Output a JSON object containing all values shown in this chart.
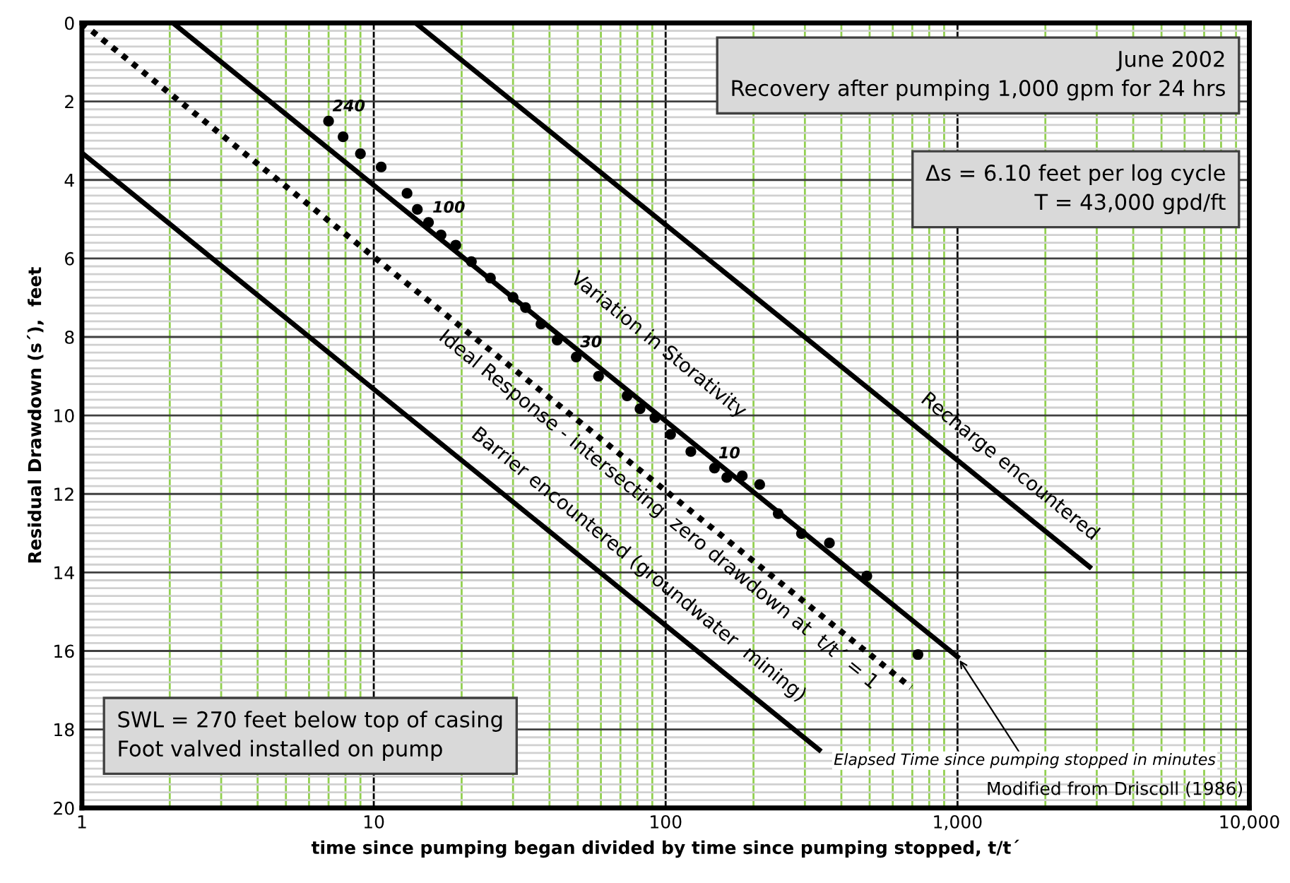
{
  "chart_data": {
    "type": "scatter",
    "xlabel": "time since pumping began divided by time since pumping stopped, t/t´",
    "ylabel": "Residual Drawdown (s´),  feet",
    "log": "x",
    "grid": true,
    "xlim": [
      1,
      10000
    ],
    "xticks": [
      1,
      {
        "value": 2,
        "label": null
      },
      {
        "value": 3,
        "label": null
      },
      {
        "value": 4,
        "label": null
      },
      {
        "value": 5,
        "label": null
      },
      {
        "value": 6,
        "label": null
      },
      {
        "value": 7,
        "label": null
      },
      {
        "value": 8,
        "label": null
      },
      {
        "value": 9,
        "label": null
      },
      10,
      {
        "value": 20,
        "label": null
      },
      {
        "value": 30,
        "label": null
      },
      {
        "value": 40,
        "label": null
      },
      {
        "value": 50,
        "label": null
      },
      {
        "value": 60,
        "label": null
      },
      {
        "value": 70,
        "label": null
      },
      {
        "value": 80,
        "label": null
      },
      {
        "value": 90,
        "label": null
      },
      100,
      {
        "value": 200,
        "label": null
      },
      {
        "value": 300,
        "label": null
      },
      {
        "value": 400,
        "label": null
      },
      {
        "value": 500,
        "label": null
      },
      {
        "value": 600,
        "label": null
      },
      {
        "value": 700,
        "label": null
      },
      {
        "value": 800,
        "label": null
      },
      {
        "value": 900,
        "label": null
      },
      {
        "value": 1000,
        "label": "1,000"
      },
      {
        "value": 2000,
        "label": null
      },
      {
        "value": 3000,
        "label": null
      },
      {
        "value": 4000,
        "label": null
      },
      {
        "value": 5000,
        "label": null
      },
      {
        "value": 6000,
        "label": null
      },
      {
        "value": 7000,
        "label": null
      },
      {
        "value": 8000,
        "label": null
      },
      {
        "value": 9000,
        "label": null
      },
      {
        "value": 10000,
        "label": "10,000"
      }
    ],
    "ylim": [
      20,
      0
    ],
    "yticks": [
      0,
      2,
      4,
      6,
      8,
      10,
      12,
      14,
      16,
      18,
      20
    ],
    "series": [
      {
        "color": "#000000",
        "marker": "circle",
        "x": [
          7.0,
          7.85,
          9.0,
          10.6,
          13.0,
          14.1,
          15.4,
          17.0,
          19.1,
          21.6,
          25.1,
          30.0,
          33.1,
          37.4,
          42.5,
          49.4,
          58.9,
          73.8,
          81.7,
          91.9,
          104,
          122,
          147,
          162,
          183,
          210,
          243,
          292,
          364,
          489,
          732
        ],
        "values": [
          2.5,
          2.9,
          3.33,
          3.67,
          4.34,
          4.75,
          5.08,
          5.4,
          5.66,
          6.08,
          6.5,
          6.99,
          7.25,
          7.67,
          8.08,
          8.51,
          9.0,
          9.5,
          9.83,
          10.06,
          10.48,
          10.92,
          11.34,
          11.58,
          11.54,
          11.76,
          12.5,
          13.01,
          13.25,
          14.09,
          16.09
        ]
      },
      {
        "type": "line",
        "color": "#000000",
        "line_style": "solid",
        "x": [
          2.05,
          1000
        ],
        "values": [
          0,
          16.15
        ]
      },
      {
        "type": "line",
        "color": "#000000",
        "line_style": "dotted",
        "x": [
          1,
          693
        ],
        "values": [
          0,
          16.93
        ]
      },
      {
        "type": "line",
        "color": "#000000",
        "line_style": "solid",
        "x": [
          13.9,
          2836
        ],
        "values": [
          0,
          13.86
        ]
      },
      {
        "type": "line",
        "color": "#000000",
        "line_style": "solid",
        "x": [
          1,
          336
        ],
        "values": [
          3.31,
          18.52
        ]
      }
    ],
    "annotations": [
      {
        "text": "240",
        "x": 7.0,
        "y": 2.5
      },
      {
        "text": "100",
        "x": 15.4,
        "y": 5.08
      },
      {
        "text": "30",
        "x": 49.4,
        "y": 8.51
      },
      {
        "text": "10",
        "x": 147,
        "y": 11.34
      },
      {
        "text": "Elapsed Time since pumping stopped in minutes",
        "x": 1000,
        "y": 16.15
      },
      "Variation in Storativity",
      "Ideal Response - intersecting  zero drawdown at  t/t´ = 1",
      "Barrier encountered (groundwater  mining)",
      "Recharge encountered",
      "June 2002\nRecovery after pumping 1,000 gpm for 24 hrs",
      "Δs = 6.10 feet per log cycle\nT = 43,000 gpd/ft",
      "SWL = 270 feet below top of casing\nFoot valved installed on pump",
      "Modified from Driscoll (1986)"
    ]
  }
}
